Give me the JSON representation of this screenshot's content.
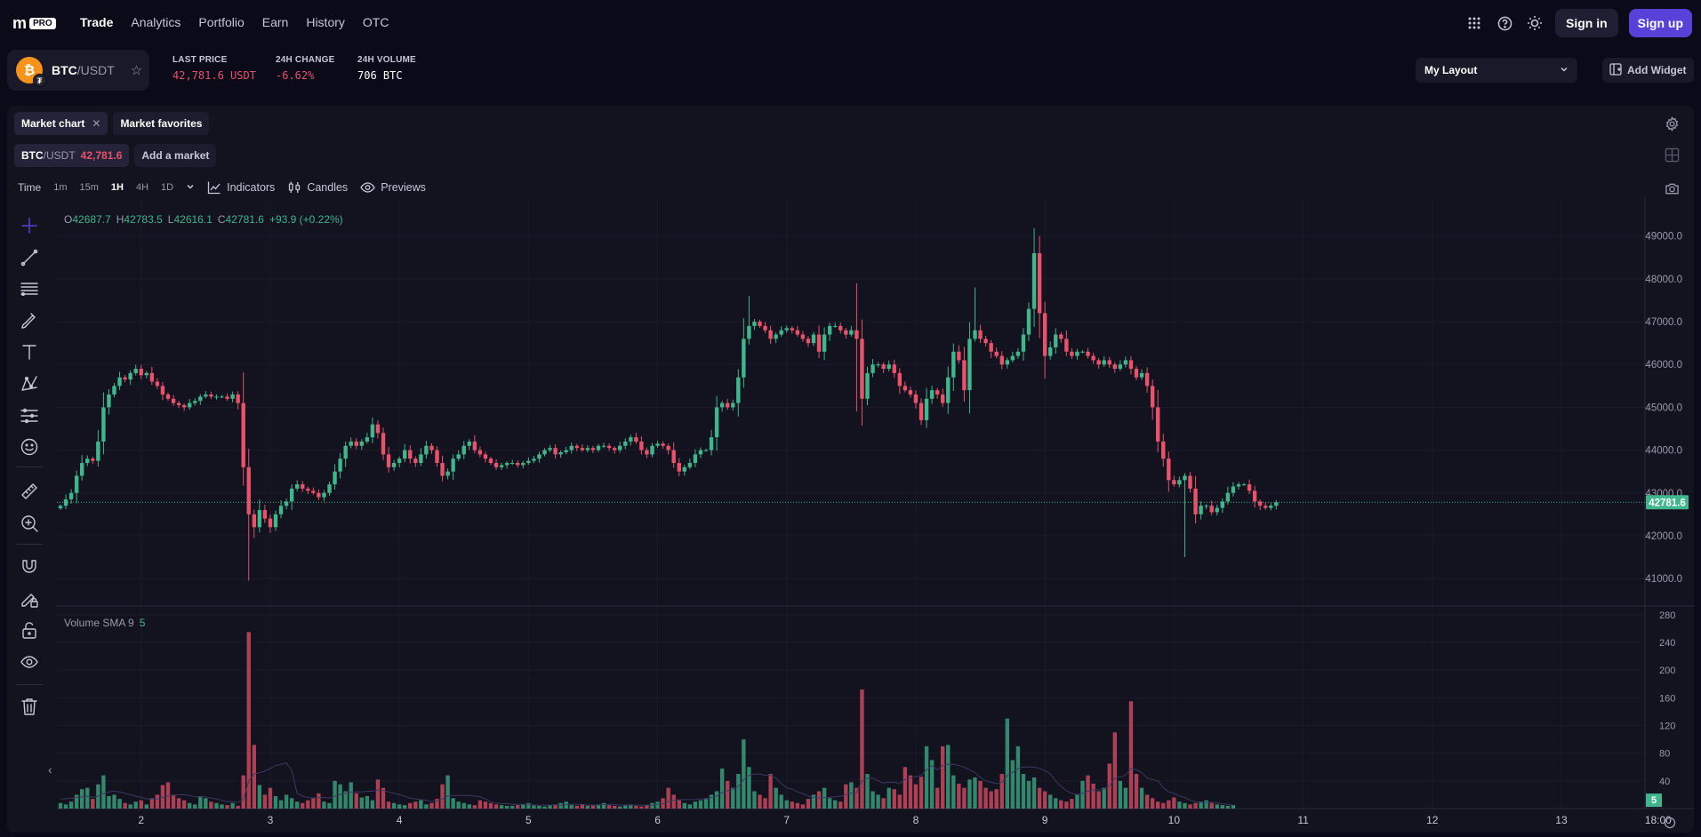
{
  "nav": {
    "logo": "m",
    "logo_badge": "PRO",
    "links": [
      "Trade",
      "Analytics",
      "Portfolio",
      "Earn",
      "History",
      "OTC"
    ],
    "active": "Trade",
    "sign_in": "Sign in",
    "sign_up": "Sign up"
  },
  "ticker": {
    "base": "BTC",
    "quote": "/USDT",
    "coin_glyph": "₿",
    "stats": [
      {
        "label": "LAST PRICE",
        "value": "42,781.6",
        "unit": "USDT",
        "color": "#e8526b"
      },
      {
        "label": "24H CHANGE",
        "value": "-6.62%",
        "unit": "",
        "color": "#e8526b"
      },
      {
        "label": "24H VOLUME",
        "value": "706",
        "unit": "BTC",
        "color": "#ffffff"
      }
    ]
  },
  "layout": {
    "label": "My Layout",
    "add_widget": "Add Widget"
  },
  "tabs": [
    {
      "label": "Market chart",
      "closable": true
    },
    {
      "label": "Market favorites",
      "closable": false
    }
  ],
  "market_bar": {
    "base": "BTC",
    "quote": "/USDT",
    "price": "42,781.6",
    "add_market": "Add a market"
  },
  "toolbar": {
    "time_label": "Time",
    "intervals": [
      "1m",
      "15m",
      "1H",
      "4H",
      "1D"
    ],
    "active_interval": "1H",
    "indicators": "Indicators",
    "candles": "Candles",
    "previews": "Previews"
  },
  "ohlc": {
    "o": "42687.7",
    "h": "42783.5",
    "l": "42616.1",
    "c": "42781.6",
    "change": "+93.9 (+0.22%)"
  },
  "volume_legend": {
    "label": "Volume SMA 9",
    "value": "5"
  },
  "colors": {
    "up": "#3fb68b",
    "down": "#e8526b",
    "accent": "#5741d9"
  },
  "sidebar_icons": [
    "crosshair-icon",
    "trend-line-icon",
    "fib-lines-icon",
    "brush-icon",
    "text-icon",
    "pattern-icon",
    "forecast-icon",
    "emoji-icon",
    "ruler-icon",
    "zoom-icon",
    "magnet-icon",
    "lock-drawing-icon",
    "lock-icon",
    "eye-icon",
    "trash-icon"
  ],
  "chart_data": {
    "type": "candlestick",
    "price_axis_ticks": [
      49000,
      48000,
      47000,
      46000,
      45000,
      44000,
      43000,
      42000,
      41000
    ],
    "price_axis_labels": [
      "49000.0",
      "48000.0",
      "47000.0",
      "46000.0",
      "45000.0",
      "44000.0",
      "43000.0",
      "42000.0",
      "41000.0"
    ],
    "ylim": [
      40400,
      49700
    ],
    "last_price": 42781.6,
    "last_price_label": "42781.6",
    "volume_axis_labels": [
      "280",
      "240",
      "200",
      "160",
      "120",
      "80",
      "40"
    ],
    "volume_axis_ticks": [
      280,
      240,
      200,
      160,
      120,
      80,
      40
    ],
    "volume_ylim": [
      0,
      285
    ],
    "volume_last_label": "5",
    "x_tick_labels": [
      "2",
      "3",
      "4",
      "5",
      "6",
      "7",
      "8",
      "9",
      "10",
      "11",
      "12",
      "13",
      "18:00"
    ],
    "x_tick_hours": [
      15,
      39,
      63,
      87,
      111,
      135,
      159,
      183,
      207,
      231,
      255,
      279,
      297
    ],
    "closes": [
      42700,
      42850,
      43000,
      43400,
      43700,
      43800,
      43750,
      44200,
      45000,
      45300,
      45500,
      45700,
      45650,
      45800,
      45900,
      45750,
      45800,
      45600,
      45500,
      45300,
      45200,
      45100,
      45050,
      45000,
      45100,
      45150,
      45250,
      45300,
      45250,
      45250,
      45250,
      45200,
      45300,
      45100,
      43600,
      42500,
      42200,
      42600,
      42400,
      42200,
      42500,
      42700,
      42800,
      43100,
      43200,
      43100,
      43050,
      43000,
      42900,
      43000,
      43200,
      43500,
      43800,
      44100,
      44200,
      44100,
      44200,
      44300,
      44600,
      44400,
      43900,
      43600,
      43700,
      43800,
      44000,
      43800,
      43700,
      43900,
      44100,
      44000,
      43700,
      43400,
      43500,
      43800,
      43900,
      44100,
      44200,
      44000,
      43900,
      43800,
      43700,
      43600,
      43650,
      43700,
      43700,
      43650,
      43700,
      43750,
      43800,
      43900,
      44000,
      44050,
      43900,
      43950,
      44000,
      44100,
      44050,
      44000,
      44050,
      44000,
      44100,
      44100,
      44050,
      44000,
      44100,
      44200,
      44300,
      44200,
      44000,
      43900,
      44100,
      44150,
      44100,
      44000,
      43700,
      43500,
      43600,
      43700,
      43900,
      44000,
      44000,
      44300,
      45000,
      45100,
      45000,
      45100,
      45700,
      46600,
      46900,
      47000,
      46900,
      46800,
      46600,
      46700,
      46800,
      46850,
      46800,
      46700,
      46600,
      46500,
      46700,
      46300,
      46700,
      46900,
      46900,
      46800,
      46700,
      46800,
      46600,
      45200,
      45800,
      46000,
      46000,
      45900,
      46000,
      45800,
      45500,
      45400,
      45300,
      45100,
      44700,
      45200,
      45400,
      45300,
      45100,
      45700,
      46300,
      46100,
      45400,
      46600,
      46800,
      46600,
      46500,
      46300,
      46200,
      46000,
      46100,
      46200,
      46300,
      46700,
      47300,
      48600,
      47200,
      46200,
      46400,
      46700,
      46600,
      46300,
      46200,
      46300,
      46300,
      46200,
      46100,
      46000,
      46100,
      46000,
      45900,
      46000,
      46100,
      45900,
      45700,
      45800,
      45500,
      45000,
      44200,
      43800,
      43300,
      43200,
      43300,
      43400,
      43100,
      42500,
      42700,
      42700,
      42550,
      42650,
      42800,
      43000,
      43150,
      43200,
      43200,
      43050,
      42800,
      42700,
      42650,
      42700,
      42781.6
    ],
    "volumes": [
      8,
      6,
      10,
      20,
      28,
      30,
      14,
      35,
      48,
      18,
      20,
      14,
      8,
      6,
      10,
      12,
      6,
      15,
      20,
      34,
      38,
      20,
      15,
      12,
      8,
      6,
      18,
      15,
      10,
      8,
      6,
      5,
      8,
      4,
      48,
      255,
      92,
      34,
      20,
      30,
      18,
      12,
      20,
      15,
      10,
      8,
      12,
      15,
      22,
      10,
      8,
      40,
      35,
      25,
      38,
      22,
      16,
      18,
      12,
      42,
      30,
      10,
      8,
      6,
      5,
      8,
      10,
      12,
      6,
      8,
      14,
      35,
      48,
      15,
      10,
      8,
      6,
      5,
      12,
      10,
      8,
      6,
      5,
      4,
      4,
      5,
      6,
      8,
      5,
      4,
      3,
      5,
      6,
      8,
      10,
      5,
      4,
      6,
      4,
      5,
      6,
      8,
      5,
      4,
      3,
      5,
      6,
      4,
      3,
      5,
      8,
      10,
      15,
      30,
      20,
      12,
      8,
      6,
      10,
      12,
      15,
      20,
      25,
      58,
      40,
      30,
      50,
      100,
      60,
      25,
      20,
      15,
      50,
      30,
      20,
      12,
      10,
      8,
      6,
      14,
      20,
      25,
      30,
      15,
      12,
      10,
      35,
      38,
      30,
      172,
      50,
      25,
      20,
      15,
      30,
      28,
      20,
      60,
      48,
      35,
      46,
      90,
      70,
      30,
      90,
      92,
      48,
      36,
      30,
      42,
      45,
      40,
      30,
      25,
      28,
      50,
      130,
      70,
      90,
      50,
      40,
      45,
      30,
      25,
      20,
      15,
      12,
      10,
      14,
      20,
      40,
      48,
      36,
      25,
      30,
      65,
      110,
      40,
      30,
      155,
      50,
      30,
      20,
      15,
      10,
      8,
      12,
      16,
      10,
      8,
      6,
      8,
      10,
      12,
      8,
      6,
      5,
      4,
      5
    ],
    "volume_sma": [
      14,
      14,
      15,
      16,
      17,
      18,
      16,
      18,
      22,
      24,
      25,
      24,
      22,
      20,
      18,
      16,
      14,
      14,
      14,
      16,
      18,
      19,
      20,
      20,
      19,
      17,
      17,
      17,
      15,
      14,
      12,
      10,
      10,
      9,
      13,
      40,
      50,
      52,
      54,
      58,
      62,
      64,
      66,
      55,
      22,
      18,
      16,
      15,
      16,
      16,
      15,
      18,
      20,
      22,
      24,
      24,
      24,
      25,
      25,
      27,
      26,
      24,
      22,
      20,
      18,
      15,
      14,
      13,
      12,
      10,
      11,
      14,
      18,
      19,
      19,
      19,
      19,
      18,
      17,
      14,
      10,
      8,
      7,
      7,
      6,
      6,
      6,
      6,
      5,
      5,
      5,
      5,
      5,
      5,
      6,
      6,
      6,
      6,
      5,
      5,
      5,
      6,
      6,
      6,
      5,
      5,
      5,
      5,
      5,
      5,
      5,
      6,
      7,
      10,
      12,
      13,
      13,
      13,
      13,
      14,
      14,
      16,
      18,
      23,
      26,
      28,
      32,
      42,
      48,
      50,
      50,
      48,
      48,
      44,
      36,
      30,
      28,
      24,
      22,
      18,
      16,
      15,
      16,
      16,
      17,
      18,
      20,
      22,
      23,
      40,
      44,
      44,
      40,
      37,
      38,
      38,
      36,
      42,
      44,
      46,
      48,
      56,
      62,
      56,
      62,
      64,
      64,
      62,
      60,
      56,
      52,
      45,
      40,
      38,
      36,
      38,
      48,
      52,
      58,
      60,
      60,
      60,
      58,
      55,
      50,
      40,
      32,
      26,
      22,
      20,
      22,
      25,
      27,
      27,
      28,
      33,
      44,
      46,
      48,
      58,
      56,
      52,
      44,
      42,
      40,
      30,
      24,
      22,
      18,
      16,
      12,
      10,
      9,
      9,
      9,
      8,
      7,
      6,
      5
    ]
  }
}
